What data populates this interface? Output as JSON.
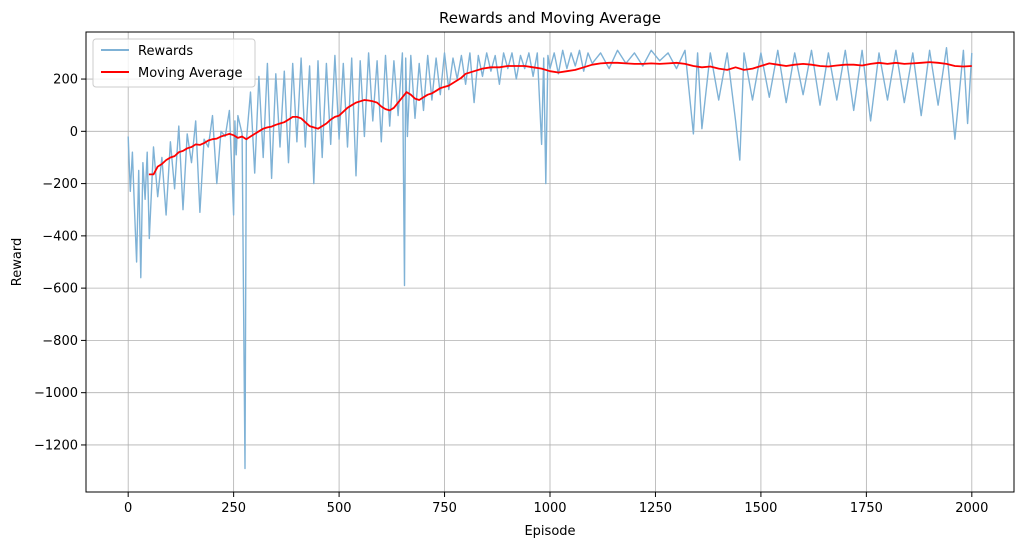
{
  "chart_data": {
    "type": "line",
    "title": "Rewards and Moving Average",
    "xlabel": "Episode",
    "ylabel": "Reward",
    "xlim": [
      -100,
      2100
    ],
    "ylim": [
      -1380,
      380
    ],
    "xticks": [
      0,
      250,
      500,
      750,
      1000,
      1250,
      1500,
      1750,
      2000
    ],
    "xtick_labels": [
      "0",
      "250",
      "500",
      "750",
      "1000",
      "1250",
      "1500",
      "1750",
      "2000"
    ],
    "yticks": [
      200,
      0,
      -200,
      -400,
      -600,
      -800,
      -1000,
      -1200
    ],
    "ytick_labels": [
      "200",
      "0",
      "−200",
      "−400",
      "−600",
      "−800",
      "−1000",
      "−1200"
    ],
    "grid": true,
    "legend_position": "top-left",
    "series": [
      {
        "name": "Rewards",
        "color": "#7fb2d6",
        "description_points": "raw per-episode rewards",
        "x": [
          0,
          5,
          10,
          15,
          20,
          25,
          30,
          35,
          40,
          45,
          50,
          60,
          70,
          80,
          90,
          100,
          110,
          120,
          130,
          140,
          150,
          160,
          170,
          180,
          190,
          200,
          210,
          220,
          230,
          240,
          250,
          253,
          256,
          260,
          270,
          277,
          280,
          290,
          300,
          310,
          320,
          330,
          340,
          350,
          360,
          370,
          380,
          390,
          400,
          410,
          420,
          430,
          440,
          450,
          460,
          470,
          480,
          490,
          500,
          510,
          520,
          530,
          540,
          550,
          560,
          570,
          580,
          590,
          600,
          610,
          620,
          630,
          640,
          650,
          655,
          658,
          662,
          670,
          680,
          690,
          700,
          710,
          720,
          730,
          740,
          750,
          760,
          770,
          780,
          790,
          800,
          810,
          820,
          830,
          840,
          850,
          860,
          870,
          880,
          890,
          900,
          910,
          920,
          930,
          940,
          950,
          960,
          970,
          980,
          985,
          990,
          995,
          1000,
          1010,
          1020,
          1030,
          1040,
          1050,
          1060,
          1070,
          1080,
          1090,
          1100,
          1120,
          1140,
          1160,
          1180,
          1200,
          1220,
          1240,
          1260,
          1280,
          1300,
          1320,
          1340,
          1350,
          1360,
          1380,
          1400,
          1420,
          1440,
          1450,
          1460,
          1480,
          1500,
          1520,
          1540,
          1560,
          1580,
          1600,
          1620,
          1640,
          1660,
          1680,
          1700,
          1720,
          1740,
          1760,
          1780,
          1800,
          1820,
          1840,
          1860,
          1880,
          1900,
          1920,
          1940,
          1960,
          1980,
          1990,
          2000
        ],
        "y": [
          -20,
          -230,
          -80,
          -300,
          -500,
          -150,
          -560,
          -120,
          -260,
          -80,
          -410,
          -60,
          -250,
          -100,
          -320,
          -40,
          -220,
          20,
          -300,
          -10,
          -120,
          40,
          -310,
          -30,
          -60,
          60,
          -200,
          0,
          -20,
          80,
          -320,
          40,
          -90,
          60,
          -10,
          -1290,
          -40,
          150,
          -160,
          210,
          -100,
          260,
          -180,
          220,
          -60,
          230,
          -120,
          260,
          -40,
          280,
          -60,
          250,
          -200,
          270,
          -100,
          260,
          -50,
          290,
          -30,
          260,
          -60,
          280,
          -170,
          270,
          -20,
          300,
          40,
          270,
          -40,
          290,
          20,
          270,
          60,
          300,
          -590,
          280,
          -20,
          290,
          50,
          260,
          80,
          290,
          120,
          280,
          140,
          300,
          160,
          280,
          200,
          290,
          180,
          300,
          110,
          290,
          210,
          300,
          230,
          290,
          180,
          300,
          240,
          300,
          200,
          290,
          240,
          300,
          210,
          300,
          -50,
          280,
          -200,
          290,
          240,
          300,
          220,
          310,
          240,
          300,
          250,
          310,
          230,
          300,
          260,
          300,
          240,
          310,
          260,
          300,
          250,
          310,
          270,
          300,
          240,
          310,
          -10,
          300,
          10,
          300,
          120,
          300,
          40,
          -110,
          300,
          120,
          300,
          130,
          310,
          110,
          300,
          140,
          310,
          100,
          300,
          120,
          310,
          80,
          310,
          40,
          300,
          120,
          310,
          110,
          300,
          60,
          310,
          100,
          320,
          -30,
          310,
          30,
          300
        ]
      },
      {
        "name": "Moving Average",
        "color": "#ff0000",
        "x": [
          49,
          60,
          70,
          80,
          90,
          100,
          110,
          120,
          130,
          140,
          150,
          160,
          170,
          180,
          190,
          200,
          210,
          220,
          230,
          240,
          250,
          260,
          270,
          280,
          290,
          300,
          310,
          320,
          330,
          340,
          350,
          360,
          370,
          380,
          390,
          400,
          410,
          420,
          430,
          440,
          450,
          460,
          470,
          480,
          490,
          500,
          510,
          520,
          530,
          540,
          550,
          560,
          570,
          580,
          590,
          600,
          610,
          620,
          630,
          640,
          650,
          660,
          670,
          680,
          690,
          700,
          710,
          720,
          730,
          740,
          750,
          760,
          770,
          780,
          790,
          800,
          820,
          840,
          860,
          880,
          900,
          920,
          940,
          960,
          980,
          1000,
          1020,
          1040,
          1060,
          1080,
          1100,
          1120,
          1140,
          1160,
          1180,
          1200,
          1220,
          1240,
          1260,
          1280,
          1300,
          1320,
          1340,
          1360,
          1380,
          1400,
          1420,
          1440,
          1460,
          1480,
          1500,
          1520,
          1540,
          1560,
          1580,
          1600,
          1620,
          1640,
          1660,
          1680,
          1700,
          1720,
          1740,
          1760,
          1780,
          1800,
          1820,
          1840,
          1860,
          1880,
          1900,
          1920,
          1940,
          1960,
          1980,
          2000
        ],
        "y": [
          -165,
          -165,
          -135,
          -125,
          -110,
          -100,
          -95,
          -80,
          -75,
          -65,
          -60,
          -50,
          -52,
          -45,
          -35,
          -30,
          -28,
          -20,
          -15,
          -10,
          -15,
          -25,
          -20,
          -30,
          -20,
          -10,
          0,
          10,
          15,
          18,
          25,
          30,
          35,
          45,
          55,
          55,
          50,
          35,
          20,
          15,
          10,
          20,
          30,
          45,
          55,
          60,
          75,
          90,
          100,
          110,
          115,
          120,
          118,
          115,
          110,
          95,
          85,
          80,
          90,
          110,
          130,
          150,
          140,
          125,
          120,
          130,
          140,
          145,
          155,
          165,
          170,
          175,
          185,
          195,
          205,
          220,
          230,
          240,
          245,
          245,
          250,
          250,
          250,
          245,
          240,
          230,
          225,
          230,
          235,
          245,
          255,
          260,
          262,
          262,
          260,
          258,
          258,
          260,
          258,
          260,
          262,
          258,
          250,
          245,
          248,
          240,
          235,
          245,
          235,
          240,
          250,
          260,
          255,
          250,
          255,
          258,
          255,
          250,
          248,
          252,
          255,
          255,
          252,
          258,
          262,
          258,
          262,
          258,
          260,
          262,
          265,
          262,
          258,
          250,
          248,
          250
        ]
      }
    ]
  }
}
